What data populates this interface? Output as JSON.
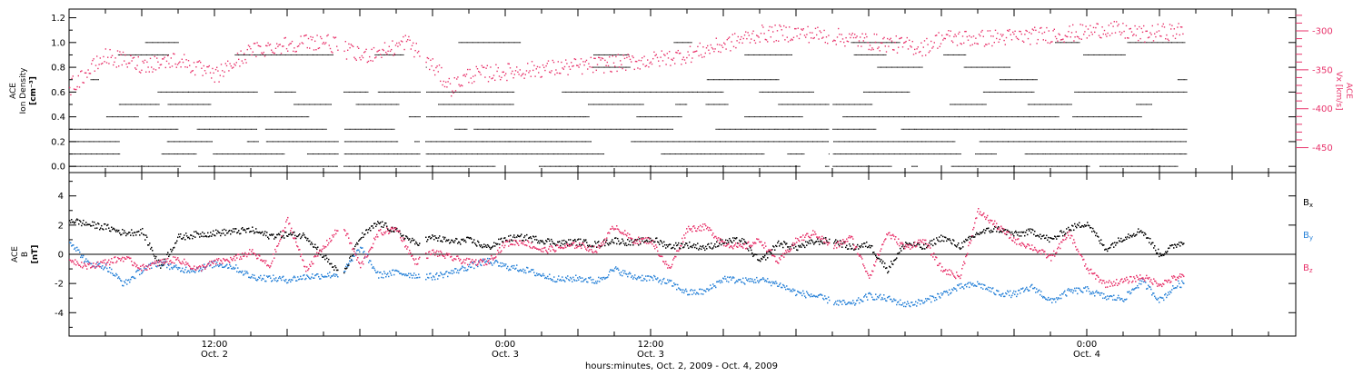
{
  "chart_data": [
    {
      "type": "scatter",
      "panel": "top",
      "left_axis": {
        "label_lines": [
          "ACE",
          "Ion Density",
          "[cm⁻³]"
        ],
        "ylim": [
          -0.05,
          1.27
        ],
        "ticks": [
          0.0,
          0.2,
          0.4,
          0.6,
          0.8,
          1.0,
          1.2
        ],
        "tick_labels": [
          "0.0",
          "0.2",
          "0.4",
          "0.6",
          "0.8",
          "1.0",
          "1.2"
        ],
        "color": "#000000"
      },
      "right_axis": {
        "label_lines": [
          "ACE",
          "Vx [km/s]"
        ],
        "ylim": [
          -482,
          -272
        ],
        "ticks": [
          -450,
          -400,
          -350,
          -300
        ],
        "tick_labels": [
          "-450",
          "-400",
          "-350",
          "-300"
        ],
        "color": "#e8336b"
      },
      "series": [
        {
          "axis": "left",
          "color": "#000000",
          "levels": [
            0.0,
            0.1,
            0.2,
            0.3,
            0.4,
            0.5,
            0.6,
            0.7,
            0.8,
            0.9,
            1.0
          ],
          "x": [],
          "y": []
        },
        {
          "axis": "right",
          "color": "#e8336b",
          "x": [
            0,
            2,
            4,
            6,
            8,
            10,
            12,
            14,
            16,
            18,
            18.5,
            20,
            21,
            22,
            24,
            26,
            28,
            30,
            32,
            34,
            36,
            38,
            40,
            42,
            44,
            46,
            47,
            48,
            50,
            52,
            54,
            56,
            57,
            58,
            59,
            60,
            61
          ],
          "y": [
            -372,
            -332,
            -343,
            -336,
            -358,
            -325,
            -316,
            -312,
            -332,
            -320,
            -312,
            -345,
            -372,
            -356,
            -352,
            -348,
            -345,
            -341,
            -337,
            -330,
            -317,
            -303,
            -302,
            -306,
            -313,
            -318,
            -321,
            -308,
            -309,
            -307,
            -304,
            -301,
            -296,
            -300,
            -304,
            -301,
            -300
          ]
        }
      ]
    },
    {
      "type": "line",
      "panel": "bottom",
      "y_axis": {
        "label_lines": [
          "ACE",
          "B",
          "[nT]"
        ],
        "ylim": [
          -5.6,
          5.6
        ],
        "ticks": [
          -4,
          -2,
          0,
          2,
          4
        ],
        "tick_labels": [
          "-4",
          "-2",
          "0",
          "2",
          "4"
        ]
      },
      "zero_line": true,
      "x_axis": {
        "xlim": [
          0,
          67.5
        ],
        "major_ticks": [
          8,
          24,
          32,
          56
        ],
        "tick_labels": [
          [
            "12:00",
            "Oct. 2"
          ],
          [
            "0:00",
            "Oct. 3"
          ],
          [
            "12:00",
            "Oct. 3"
          ],
          [
            "0:00",
            "Oct. 4"
          ]
        ],
        "xlabel": "hours:minutes, Oct.  2, 2009 - Oct.  4, 2009"
      },
      "legend": {
        "placement": "right",
        "items": [
          "Bx",
          "By",
          "Bz"
        ]
      },
      "series": [
        {
          "name": "Bx",
          "color": "#000000",
          "x": [
            0,
            1,
            2,
            3,
            4,
            5,
            6,
            7,
            8,
            9,
            10,
            11,
            12,
            13,
            15,
            16,
            17,
            18,
            19,
            20,
            21,
            22,
            23,
            24,
            25,
            26,
            27,
            28,
            29,
            30,
            31,
            32,
            33,
            34,
            35,
            36,
            37,
            38,
            39,
            40,
            41,
            42,
            43,
            44,
            45,
            46,
            47,
            48,
            49,
            50,
            51,
            52,
            53,
            54,
            55,
            56,
            57,
            58,
            59,
            60,
            61
          ],
          "y": [
            2.4,
            2.1,
            1.9,
            1.5,
            1.6,
            -0.8,
            1.2,
            1.4,
            1.5,
            1.6,
            1.7,
            1.3,
            1.4,
            1.3,
            -1.5,
            1.2,
            2.2,
            1.6,
            0.8,
            1.2,
            0.9,
            1.0,
            0.5,
            1.1,
            1.2,
            1.0,
            0.8,
            0.9,
            0.7,
            1.0,
            0.8,
            1.1,
            0.6,
            0.7,
            0.5,
            0.9,
            1.0,
            -0.5,
            0.8,
            0.5,
            0.9,
            1.0,
            0.5,
            0.7,
            -1.0,
            0.8,
            0.5,
            1.2,
            0.6,
            1.5,
            1.8,
            1.4,
            1.6,
            1.0,
            1.8,
            2.2,
            0.4,
            1.2,
            1.7,
            0.0,
            0.8
          ]
        },
        {
          "name": "By",
          "color": "#2a83d8",
          "x": [
            0,
            1,
            2,
            3,
            4,
            5,
            6,
            7,
            8,
            9,
            10,
            11,
            12,
            13,
            15,
            16,
            17,
            18,
            19,
            20,
            21,
            22,
            23,
            24,
            25,
            26,
            27,
            28,
            29,
            30,
            31,
            32,
            33,
            34,
            35,
            36,
            37,
            38,
            39,
            40,
            41,
            42,
            43,
            44,
            45,
            46,
            47,
            48,
            49,
            50,
            51,
            52,
            53,
            54,
            55,
            56,
            57,
            58,
            59,
            60,
            61
          ],
          "y": [
            1.0,
            -0.6,
            -0.8,
            -2.0,
            -1.0,
            -0.5,
            -1.0,
            -1.0,
            -0.6,
            -0.8,
            -1.5,
            -1.6,
            -1.7,
            -1.5,
            -1.3,
            0.5,
            -1.4,
            -1.2,
            -1.4,
            -1.5,
            -1.2,
            -0.8,
            -0.4,
            -0.8,
            -1.0,
            -1.4,
            -1.7,
            -1.6,
            -1.8,
            -1.0,
            -1.5,
            -1.6,
            -1.9,
            -2.6,
            -2.5,
            -1.6,
            -1.8,
            -1.7,
            -2.0,
            -2.6,
            -2.8,
            -3.2,
            -3.4,
            -2.8,
            -3.0,
            -3.4,
            -3.2,
            -2.7,
            -2.2,
            -2.0,
            -2.6,
            -2.7,
            -2.2,
            -3.2,
            -2.5,
            -2.4,
            -2.9,
            -3.0,
            -1.8,
            -3.1,
            -2.0
          ]
        },
        {
          "name": "Bz",
          "color": "#e8336b",
          "x": [
            0,
            1,
            2,
            3,
            4,
            5,
            6,
            7,
            8,
            9,
            10,
            11,
            12,
            13,
            15,
            16,
            17,
            18,
            19,
            20,
            21,
            22,
            23,
            24,
            25,
            26,
            27,
            28,
            29,
            30,
            31,
            32,
            33,
            34,
            35,
            36,
            37,
            38,
            39,
            40,
            41,
            42,
            43,
            44,
            45,
            46,
            47,
            48,
            49,
            50,
            51,
            52,
            53,
            54,
            55,
            56,
            57,
            58,
            59,
            60,
            61
          ],
          "y": [
            -0.3,
            -0.8,
            -0.5,
            -0.2,
            -0.9,
            -0.5,
            -0.3,
            -1.0,
            -0.5,
            -0.3,
            0.2,
            -0.8,
            2.4,
            -1.0,
            2.1,
            -0.8,
            1.5,
            1.8,
            -0.5,
            0.2,
            -0.2,
            -0.5,
            -0.5,
            0.8,
            0.9,
            0.3,
            0.5,
            0.7,
            0.3,
            2.0,
            1.0,
            1.0,
            -1.0,
            1.8,
            1.9,
            0.8,
            0.5,
            1.0,
            -0.5,
            1.0,
            1.5,
            0.5,
            1.2,
            -1.5,
            1.5,
            0.5,
            1.0,
            -1.0,
            -1.5,
            3.0,
            2.0,
            1.0,
            0.5,
            -0.2,
            1.5,
            -1.0,
            -2.0,
            -1.8,
            -1.5,
            -2.0,
            -1.5
          ]
        }
      ]
    }
  ]
}
